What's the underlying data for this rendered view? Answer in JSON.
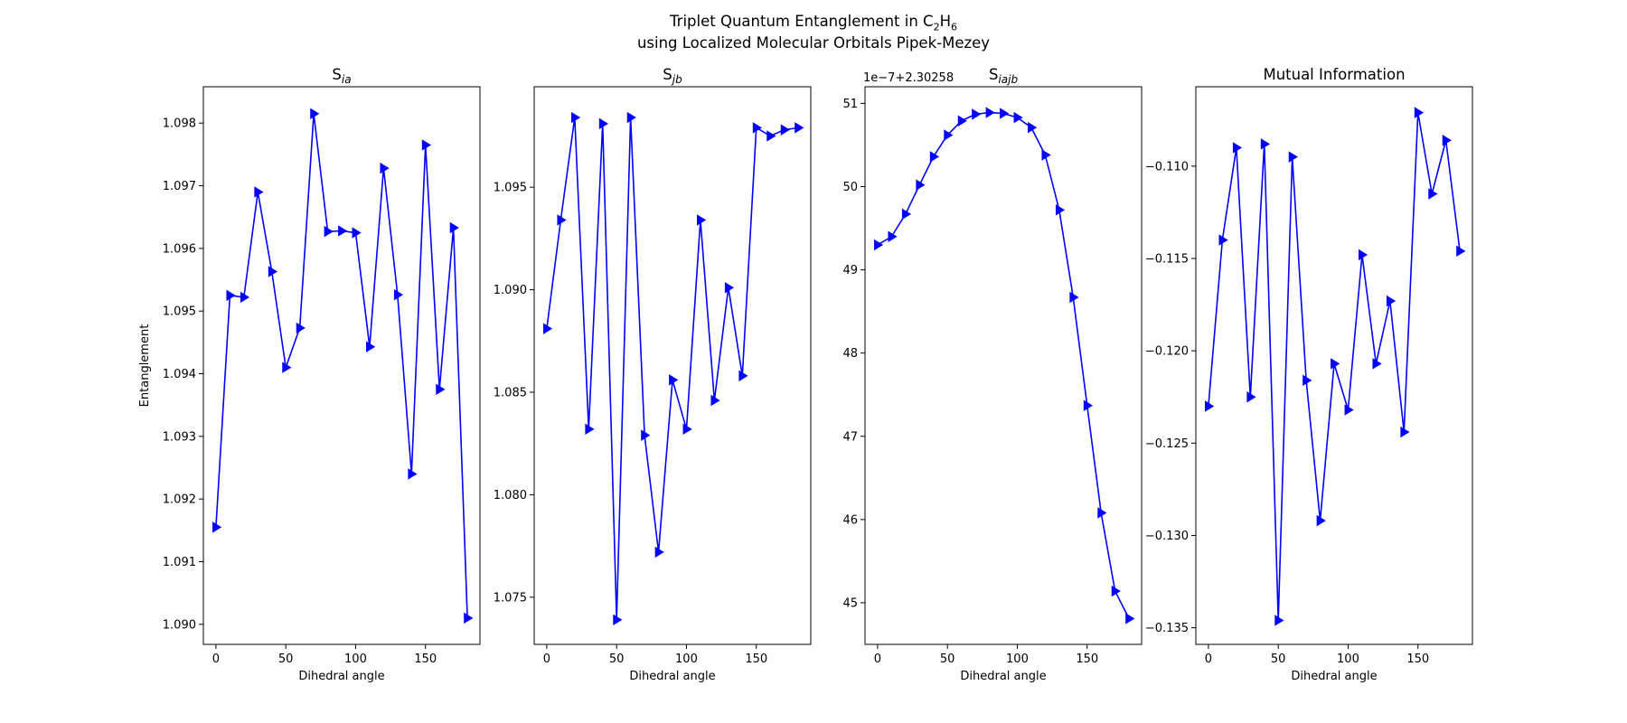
{
  "figure": {
    "title_line1_pre": "Triplet Quantum Entanglement in C",
    "title_sub1": "2",
    "title_mid": "H",
    "title_sub2": "6",
    "title_line2": "using Localized Molecular Orbitals Pipek-Mezey"
  },
  "colors": {
    "line": "#0000ff",
    "axis": "#000000",
    "background": "#ffffff"
  },
  "marker": "triangle-right",
  "chart_data": [
    {
      "type": "line",
      "title": "S",
      "title_sub": "ia",
      "xlabel": "Dihedral angle",
      "ylabel": "Entanglement",
      "offset_text": "",
      "xlim": [
        -9,
        189
      ],
      "ylim": [
        1.08968,
        1.09858
      ],
      "xticks": [
        0,
        50,
        100,
        150
      ],
      "yticks": [
        1.09,
        1.091,
        1.092,
        1.093,
        1.094,
        1.095,
        1.096,
        1.097,
        1.098
      ],
      "ytick_labels": [
        "1.090",
        "1.091",
        "1.092",
        "1.093",
        "1.094",
        "1.095",
        "1.096",
        "1.097",
        "1.098"
      ],
      "grid": false,
      "x": [
        0,
        10,
        20,
        30,
        40,
        50,
        60,
        70,
        80,
        90,
        100,
        110,
        120,
        130,
        140,
        150,
        160,
        170,
        180
      ],
      "y": [
        1.09155,
        1.09525,
        1.09522,
        1.0969,
        1.09563,
        1.0941,
        1.09473,
        1.09815,
        1.09627,
        1.09628,
        1.09625,
        1.09443,
        1.09728,
        1.09526,
        1.0924,
        1.09765,
        1.09375,
        1.09633,
        1.0901
      ]
    },
    {
      "type": "line",
      "title": "S",
      "title_sub": "jb",
      "xlabel": "Dihedral angle",
      "ylabel": "",
      "offset_text": "",
      "xlim": [
        -9,
        189
      ],
      "ylim": [
        1.0727,
        1.0999
      ],
      "xticks": [
        0,
        50,
        100,
        150
      ],
      "yticks": [
        1.075,
        1.08,
        1.085,
        1.09,
        1.095
      ],
      "ytick_labels": [
        "1.075",
        "1.080",
        "1.085",
        "1.090",
        "1.095"
      ],
      "grid": false,
      "x": [
        0,
        10,
        20,
        30,
        40,
        50,
        60,
        70,
        80,
        90,
        100,
        110,
        120,
        130,
        140,
        150,
        160,
        170,
        180
      ],
      "y": [
        1.0881,
        1.0934,
        1.0984,
        1.0832,
        1.0981,
        1.0739,
        1.0984,
        1.0829,
        1.0772,
        1.0856,
        1.0832,
        1.0934,
        1.0846,
        1.0901,
        1.0858,
        1.0979,
        1.0975,
        1.0978,
        1.0979
      ]
    },
    {
      "type": "line",
      "title": "S",
      "title_sub": "iajb",
      "xlabel": "Dihedral angle",
      "ylabel": "",
      "offset_text": "1e−7+2.30258",
      "xlim": [
        -9,
        189
      ],
      "ylim": [
        44.5,
        51.2
      ],
      "xticks": [
        0,
        50,
        100,
        150
      ],
      "yticks": [
        45,
        46,
        47,
        48,
        49,
        50,
        51
      ],
      "ytick_labels": [
        "45",
        "46",
        "47",
        "48",
        "49",
        "50",
        "51"
      ],
      "grid": false,
      "x": [
        0,
        10,
        20,
        30,
        40,
        50,
        60,
        70,
        80,
        90,
        100,
        110,
        120,
        130,
        140,
        150,
        160,
        170,
        180
      ],
      "y": [
        49.3,
        49.4,
        49.67,
        50.02,
        50.36,
        50.62,
        50.79,
        50.87,
        50.89,
        50.88,
        50.83,
        50.71,
        50.38,
        49.72,
        48.67,
        47.37,
        46.08,
        45.14,
        44.81
      ]
    },
    {
      "type": "line",
      "title": "Mutual Information",
      "title_sub": "",
      "xlabel": "Dihedral angle",
      "ylabel": "",
      "offset_text": "",
      "xlim": [
        -9,
        189
      ],
      "ylim": [
        -0.1359,
        -0.1057
      ],
      "xticks": [
        0,
        50,
        100,
        150
      ],
      "yticks": [
        -0.135,
        -0.13,
        -0.125,
        -0.12,
        -0.115,
        -0.11
      ],
      "ytick_labels": [
        "−0.135",
        "−0.130",
        "−0.125",
        "−0.120",
        "−0.115",
        "−0.110"
      ],
      "grid": false,
      "x": [
        0,
        10,
        20,
        30,
        40,
        50,
        60,
        70,
        80,
        90,
        100,
        110,
        120,
        130,
        140,
        150,
        160,
        170,
        180
      ],
      "y": [
        -0.123,
        -0.114,
        -0.109,
        -0.1225,
        -0.1088,
        -0.1346,
        -0.1095,
        -0.1216,
        -0.1292,
        -0.1207,
        -0.1232,
        -0.1148,
        -0.1207,
        -0.1173,
        -0.1244,
        -0.1071,
        -0.1115,
        -0.1086,
        -0.1146
      ]
    }
  ]
}
